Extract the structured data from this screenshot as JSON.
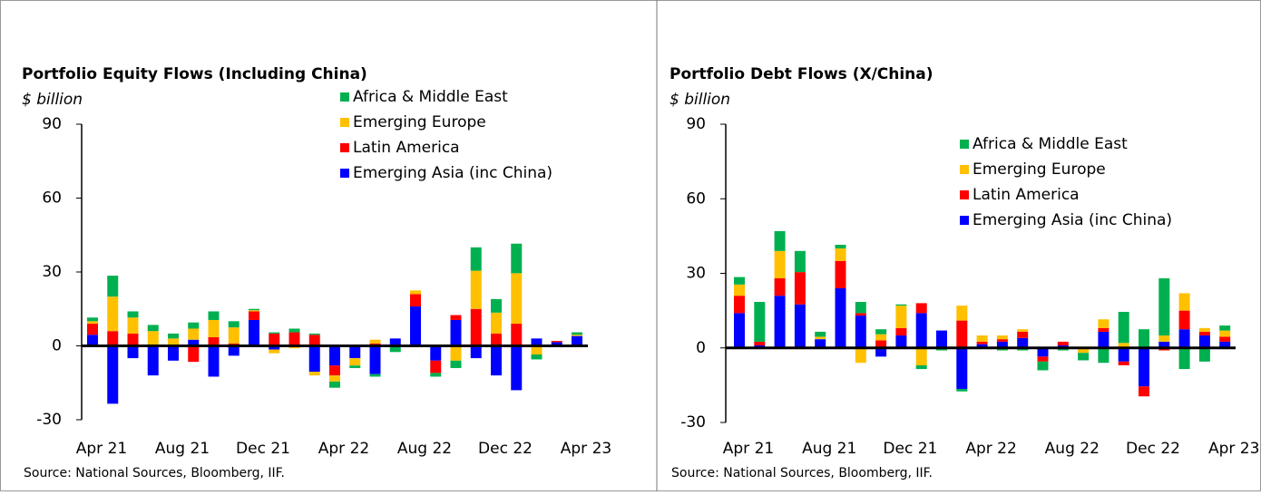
{
  "chart_data": [
    {
      "type": "bar",
      "stacked": true,
      "title": "Portfolio Equity Flows (Including China)",
      "y_label": "$ billion",
      "source": "Source: National Sources, Bloomberg, IIF.",
      "categories": [
        "Apr 21",
        null,
        null,
        null,
        "Aug 21",
        null,
        null,
        null,
        "Dec 21",
        null,
        null,
        null,
        "Apr 22",
        null,
        null,
        null,
        "Aug 22",
        null,
        null,
        null,
        "Dec 22",
        null,
        null,
        null,
        "Apr 23"
      ],
      "ylim": [
        -30,
        90
      ],
      "yticks": [
        90,
        60,
        30,
        0,
        -30
      ],
      "legend": "upper right",
      "series": [
        {
          "name": "Emerging Asia (inc China)",
          "color": "#0000ff",
          "values": [
            4.5,
            -23.5,
            -5,
            -12,
            -6,
            2.5,
            -12.5,
            -4,
            10.5,
            -1.5,
            0,
            -10.5,
            -8,
            -5,
            -11.5,
            3,
            16,
            -6,
            10.5,
            -5,
            -12,
            -18,
            3,
            1.5,
            4
          ]
        },
        {
          "name": "Latin America",
          "color": "#ff0000",
          "values": [
            4.5,
            6,
            5,
            0,
            0,
            -6.5,
            3.5,
            1,
            3.5,
            5,
            5.5,
            4.5,
            -4,
            0,
            1,
            0,
            5,
            -5,
            2,
            15,
            5,
            9,
            0,
            0.5,
            0
          ]
        },
        {
          "name": "Emerging Europe",
          "color": "#ffc000",
          "values": [
            1,
            14,
            6.5,
            6,
            3,
            4.5,
            7,
            6.5,
            0.5,
            -1.5,
            -1,
            -1.5,
            -2.5,
            -3,
            1.5,
            0,
            1.5,
            0,
            -6,
            15.5,
            8.5,
            20.5,
            -3.5,
            0,
            0.5
          ]
        },
        {
          "name": "Africa & Middle East",
          "color": "#00b050",
          "values": [
            1.5,
            8.5,
            2.5,
            2.5,
            2,
            2.5,
            3.5,
            2.5,
            0.5,
            0.5,
            1.5,
            0.5,
            -2.5,
            -1,
            -1,
            -2.5,
            0,
            -1.5,
            -3,
            9.5,
            5.5,
            12,
            -2,
            0,
            1
          ]
        }
      ]
    },
    {
      "type": "bar",
      "stacked": true,
      "title": "Portfolio Debt Flows (X/China)",
      "y_label": "$ billion",
      "source": "Source: National Sources, Bloomberg, IIF.",
      "categories": [
        "Apr 21",
        null,
        null,
        null,
        "Aug 21",
        null,
        null,
        null,
        "Dec 21",
        null,
        null,
        null,
        "Apr 22",
        null,
        null,
        null,
        "Aug 22",
        null,
        null,
        null,
        "Dec 22",
        null,
        null,
        null,
        "Apr 23"
      ],
      "ylim": [
        -30,
        90
      ],
      "yticks": [
        90,
        60,
        30,
        0,
        -30
      ],
      "legend": "upper right",
      "series": [
        {
          "name": "Emerging Asia (inc China)",
          "color": "#0000ff",
          "values": [
            14,
            1,
            21,
            17.5,
            3.5,
            24,
            13,
            -3.5,
            5,
            14,
            7,
            -16.5,
            1.5,
            2.5,
            4,
            -3.5,
            1,
            0,
            6.5,
            -5.5,
            -15.5,
            2.5,
            7.5,
            5,
            2.5
          ]
        },
        {
          "name": "Latin America",
          "color": "#ff0000",
          "values": [
            7,
            1.5,
            7,
            13,
            0,
            11,
            1,
            3,
            3,
            4,
            0,
            11,
            1,
            1,
            2.5,
            -2,
            1.5,
            0,
            1.5,
            -1.5,
            -4,
            -1,
            7.5,
            1.5,
            2
          ]
        },
        {
          "name": "Emerging Europe",
          "color": "#ffc000",
          "values": [
            4.5,
            0,
            11,
            0,
            1,
            5,
            -6,
            2.5,
            9,
            -7,
            0,
            6,
            2.5,
            1.5,
            1,
            0,
            0,
            -2,
            3.5,
            2,
            0,
            2.5,
            7,
            1.5,
            2.5
          ]
        },
        {
          "name": "Africa & Middle East",
          "color": "#00b050",
          "values": [
            3,
            16,
            8,
            8.5,
            2,
            1.5,
            4.5,
            2,
            0.5,
            -1.5,
            -1,
            -1,
            0,
            -1,
            -1,
            -3.5,
            -1,
            -3,
            -6,
            12.5,
            7.5,
            23,
            -8.5,
            -5.5,
            2
          ]
        }
      ]
    }
  ]
}
